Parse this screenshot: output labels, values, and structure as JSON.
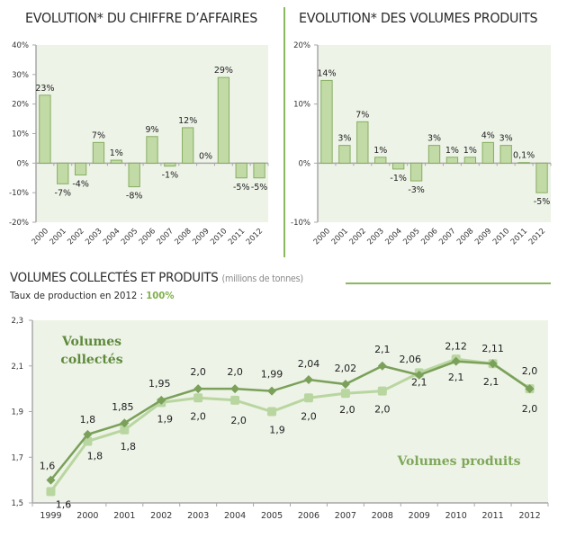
{
  "titles": {
    "ca": "EVOLUTION* DU CHIFFRE D’AFFAIRES",
    "vol": "EVOLUTION* DES VOLUMES PRODUITS",
    "section": "VOLUMES COLLECTÉS ET PRODUITS",
    "section_unit": "(millions de tonnes)",
    "rate_label": "Taux de production en 2012 : ",
    "rate_value": "100%"
  },
  "colors": {
    "plot_bg": "#edf3e7",
    "bar_fill": "#c2dba6",
    "bar_stroke": "#86ad62",
    "axis": "#a8a8a8",
    "accent": "#8ab85e",
    "series_dark": "#7aa05a",
    "series_light": "#b9d6a0",
    "ann_dark": "#5f8a3c",
    "ann_light": "#7fa75a"
  },
  "chart_data": [
    {
      "type": "bar",
      "title": "EVOLUTION* DU CHIFFRE D’AFFAIRES",
      "categories": [
        "2000",
        "2001",
        "2002",
        "2003",
        "2004",
        "2005",
        "2006",
        "2007",
        "2008",
        "2009",
        "2010",
        "2011",
        "2012"
      ],
      "values": [
        23,
        -7,
        -4,
        7,
        1,
        -8,
        9,
        -1,
        12,
        0,
        29,
        -5,
        -5
      ],
      "labels": [
        "23%",
        "-7%",
        "-4%",
        "7%",
        "1%",
        "-8%",
        "9%",
        "-1%",
        "12%",
        "0%",
        "29%",
        "-5%",
        "-5%"
      ],
      "ylim": [
        -20,
        40
      ],
      "yticks": [
        40,
        30,
        20,
        10,
        0,
        -10,
        -20
      ],
      "ytick_labels": [
        "40%",
        "30%",
        "20%",
        "10%",
        "0%",
        "-10%",
        "-20%"
      ],
      "xlabel": "",
      "ylabel": "",
      "grid": false
    },
    {
      "type": "bar",
      "title": "EVOLUTION* DES VOLUMES PRODUITS",
      "categories": [
        "2000",
        "2001",
        "2002",
        "2003",
        "2004",
        "2005",
        "2006",
        "2007",
        "2008",
        "2009",
        "2010",
        "2011",
        "2012"
      ],
      "values": [
        14,
        3,
        7,
        1,
        -1,
        -3,
        3,
        1,
        1,
        3.5,
        3,
        0.1,
        -5
      ],
      "labels": [
        "14%",
        "3%",
        "7%",
        "1%",
        "-1%",
        "-3%",
        "3%",
        "1%",
        "1%",
        "4%",
        "3%",
        "0,1%",
        "-5%"
      ],
      "ylim": [
        -10,
        20
      ],
      "yticks": [
        20,
        10,
        0,
        -10
      ],
      "ytick_labels": [
        "20%",
        "10%",
        "0%",
        "-10%"
      ],
      "xlabel": "",
      "ylabel": "",
      "grid": false
    },
    {
      "type": "line",
      "title": "VOLUMES COLLECTÉS ET PRODUITS (millions de tonnes)",
      "x": [
        "1999",
        "2000",
        "2001",
        "2002",
        "2003",
        "2004",
        "2005",
        "2006",
        "2007",
        "2008",
        "2009",
        "2010",
        "2011",
        "2012"
      ],
      "ylim": [
        1.5,
        2.3
      ],
      "yticks": [
        2.3,
        2.1,
        1.9,
        1.7,
        1.5
      ],
      "ytick_labels": [
        "2,3",
        "2,1",
        "1,9",
        "1,7",
        "1,5"
      ],
      "series": [
        {
          "name": "Volumes collectés",
          "values": [
            1.6,
            1.8,
            1.85,
            1.95,
            2.0,
            2.0,
            1.99,
            2.04,
            2.02,
            2.1,
            2.06,
            2.12,
            2.11,
            2.0
          ],
          "labels": [
            "1,6",
            "1,8",
            "1,85",
            "1,95",
            "2,0",
            "2,0",
            "1,99",
            "2,04",
            "2,02",
            "2,1",
            "2,06",
            "2,12",
            "2,11",
            "2,0"
          ]
        },
        {
          "name": "Volumes produits",
          "values": [
            1.55,
            1.77,
            1.82,
            1.94,
            1.96,
            1.95,
            1.9,
            1.96,
            1.98,
            1.99,
            2.07,
            2.13,
            2.11,
            2.0
          ],
          "labels": [
            "1,6",
            "1,8",
            "1,8",
            "1,9",
            "2,0",
            "2,0",
            "1,9",
            "2,0",
            "2,0",
            "2,0",
            "2,1",
            "2,1",
            "2,1",
            "2,0"
          ]
        }
      ],
      "annotations": [
        "Volumes",
        "collectés",
        "Volumes produits"
      ],
      "xlabel": "",
      "ylabel": "",
      "grid": false
    }
  ]
}
